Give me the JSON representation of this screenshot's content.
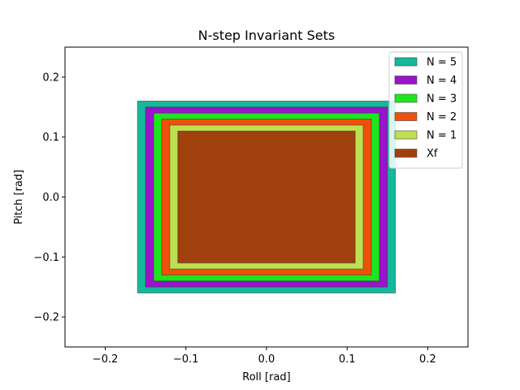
{
  "chart_data": {
    "type": "area",
    "title": "N-step Invariant Sets",
    "xlabel": "Roll [rad]",
    "ylabel": "Pitch [rad]",
    "xlim": [
      -0.25,
      0.25
    ],
    "ylim": [
      -0.25,
      0.25
    ],
    "xticks": [
      -0.2,
      -0.1,
      0.0,
      0.1,
      0.2
    ],
    "yticks": [
      -0.2,
      -0.1,
      0.0,
      0.1,
      0.2
    ],
    "xtick_labels": [
      "−0.2",
      "−0.1",
      "0.0",
      "0.1",
      "0.2"
    ],
    "ytick_labels": [
      "−0.2",
      "−0.1",
      "0.0",
      "0.1",
      "0.2"
    ],
    "grid": false,
    "legend_position": "top-right",
    "series": [
      {
        "name": "N = 5",
        "color": "#14b89a",
        "x_range": [
          -0.16,
          0.16
        ],
        "y_range": [
          -0.16,
          0.16
        ]
      },
      {
        "name": "N = 4",
        "color": "#9a14cc",
        "x_range": [
          -0.15,
          0.15
        ],
        "y_range": [
          -0.15,
          0.15
        ]
      },
      {
        "name": "N = 3",
        "color": "#1ee61e",
        "x_range": [
          -0.14,
          0.14
        ],
        "y_range": [
          -0.14,
          0.14
        ]
      },
      {
        "name": "N = 2",
        "color": "#f0500a",
        "x_range": [
          -0.13,
          0.13
        ],
        "y_range": [
          -0.13,
          0.13
        ]
      },
      {
        "name": "N = 1",
        "color": "#bee050",
        "x_range": [
          -0.12,
          0.12
        ],
        "y_range": [
          -0.12,
          0.12
        ]
      },
      {
        "name": "Xf",
        "color": "#a0400c",
        "x_range": [
          -0.11,
          0.11
        ],
        "y_range": [
          -0.11,
          0.11
        ]
      }
    ]
  }
}
